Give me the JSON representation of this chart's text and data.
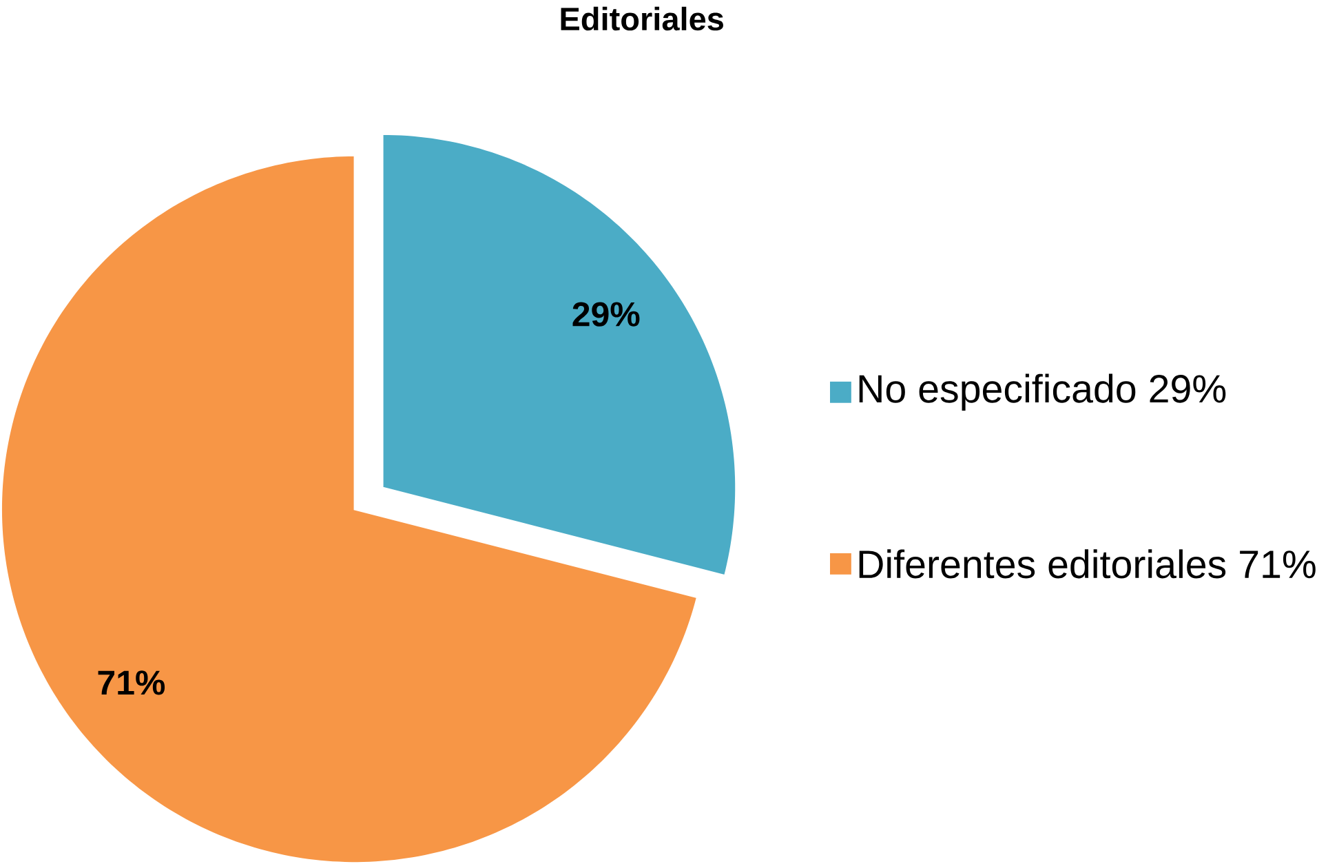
{
  "chart_data": {
    "type": "pie",
    "title": "Editoriales",
    "categories": [
      "No especificado 29%",
      "Diferentes editoriales 71%"
    ],
    "values": [
      29,
      71
    ],
    "colors": [
      "#4bacc6",
      "#f79646"
    ],
    "value_labels": [
      "29%",
      "71%"
    ],
    "legend": "right"
  }
}
